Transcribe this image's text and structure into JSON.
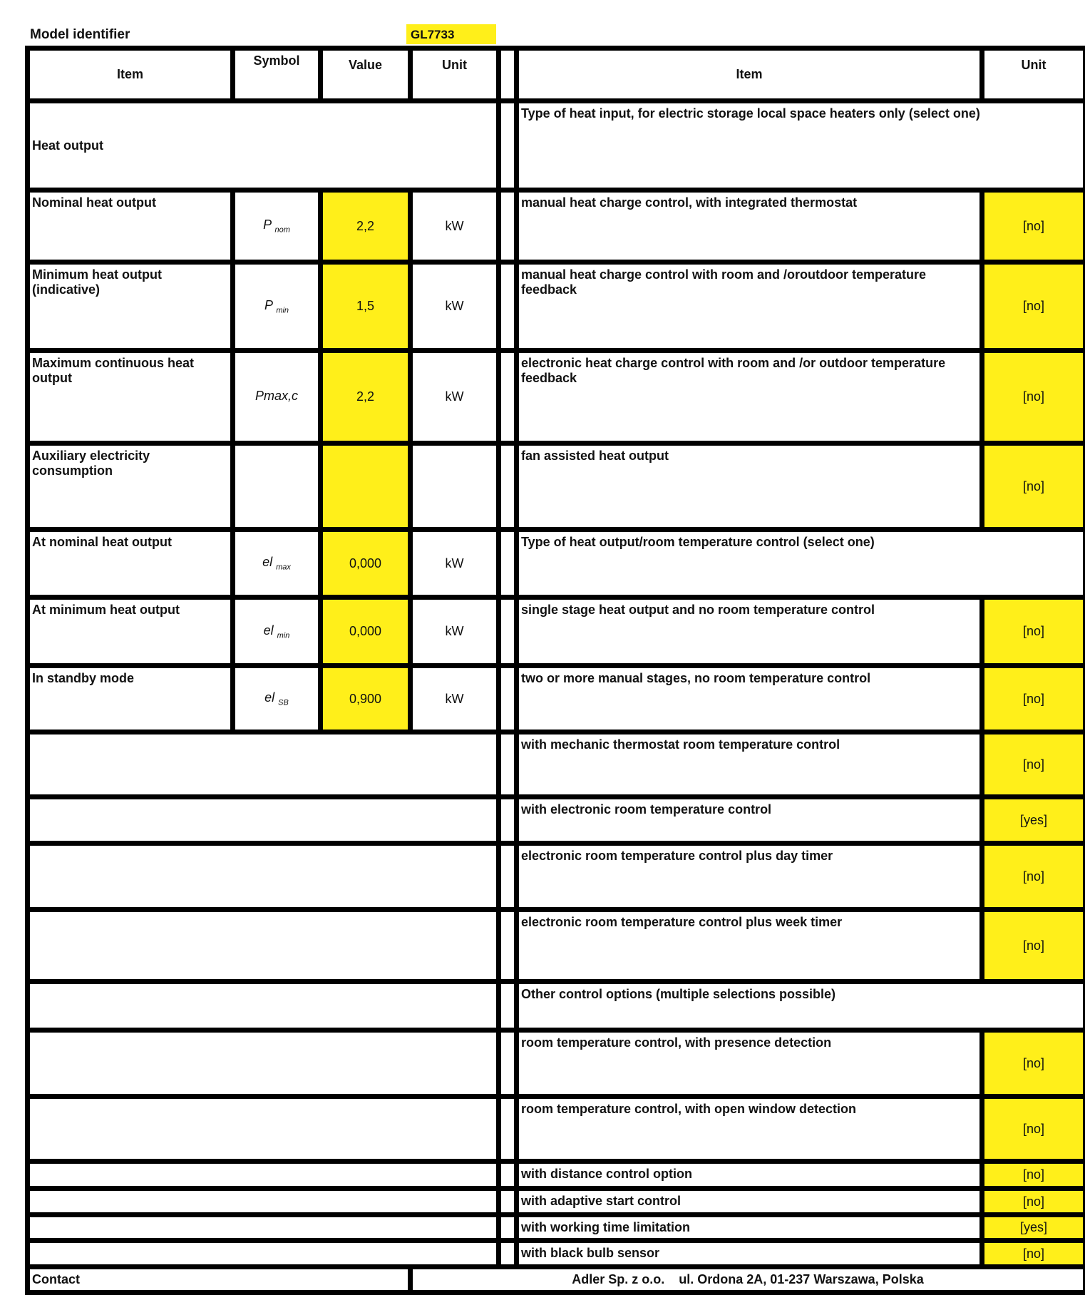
{
  "model": {
    "label": "Model identifier",
    "value": "GL7733"
  },
  "colors": {
    "highlight": "#ffef1a",
    "border": "#000000"
  },
  "header": {
    "item": "Item",
    "symbol": "Symbol",
    "value": "Value",
    "unit": "Unit",
    "right_item": "Item",
    "right_unit": "Unit"
  },
  "rows": [
    {
      "left": {
        "span": "Heat output"
      },
      "right": {
        "span": "Type of heat input, for electric storage local space heaters only (select one)"
      }
    },
    {
      "left": {
        "item": "Nominal heat output",
        "symbol": "P",
        "sub": "nom",
        "value": "2,2",
        "unit": "kW"
      },
      "right": {
        "item": "manual heat charge control, with integrated thermostat",
        "unit": "[no]"
      }
    },
    {
      "left": {
        "item": "Minimum heat output (indicative)",
        "symbol": "P",
        "sub": "min",
        "value": "1,5",
        "unit": "kW"
      },
      "right": {
        "item": "manual heat charge control with room and /oroutdoor temperature feedback",
        "unit": "[no]"
      }
    },
    {
      "left": {
        "item": "Maximum continuous heat output",
        "symbol": "Pmax,c",
        "sub": "",
        "value": "2,2",
        "unit": "kW"
      },
      "right": {
        "item": "electronic heat charge control with room and /or outdoor temperature feedback",
        "unit": "[no]"
      }
    },
    {
      "left": {
        "item": "Auxiliary electricity consumption",
        "symbol": "",
        "sub": "",
        "value": "",
        "unit": ""
      },
      "right": {
        "item": "fan assisted heat output",
        "unit": "[no]"
      }
    },
    {
      "left": {
        "item": "At nominal heat output",
        "symbol": "el",
        "sub": "max",
        "value": "0,000",
        "unit": "kW"
      },
      "right": {
        "span": "Type of heat output/room temperature control (select one)"
      }
    },
    {
      "left": {
        "item": "At minimum heat output",
        "symbol": "el",
        "sub": "min",
        "value": "0,000",
        "unit": "kW"
      },
      "right": {
        "item": "single stage heat output and no room temperature control",
        "unit": "[no]"
      }
    },
    {
      "left": {
        "item": "In standby mode",
        "symbol": "el",
        "sub": "SB",
        "value": "0,900",
        "unit": "kW"
      },
      "right": {
        "item": "two or more manual stages, no room temperature control",
        "unit": "[no]"
      }
    },
    {
      "left": {
        "span": ""
      },
      "right": {
        "item": "with mechanic thermostat room temperature control",
        "unit": "[no]"
      }
    },
    {
      "left": {
        "span": ""
      },
      "right": {
        "item": "with electronic room temperature control",
        "unit": "[yes]"
      }
    },
    {
      "left": {
        "span": ""
      },
      "right": {
        "item": "electronic room temperature control plus day timer",
        "unit": "[no]"
      }
    },
    {
      "left": {
        "span": ""
      },
      "right": {
        "item": "electronic room temperature control plus week timer",
        "unit": "[no]"
      }
    },
    {
      "left": {
        "span": ""
      },
      "right": {
        "span": "Other control options (multiple selections possible)"
      }
    },
    {
      "left": {
        "span": ""
      },
      "right": {
        "item": "room temperature control, with presence detection",
        "unit": "[no]"
      }
    },
    {
      "left": {
        "span": ""
      },
      "right": {
        "item": "room temperature control, with open window detection",
        "unit": "[no]"
      }
    },
    {
      "left": {
        "span": ""
      },
      "right": {
        "item": "with distance control option",
        "unit": "[no]"
      }
    },
    {
      "left": {
        "span": ""
      },
      "right": {
        "item": "with adaptive start control",
        "unit": "[no]"
      }
    },
    {
      "left": {
        "span": ""
      },
      "right": {
        "item": "with working time limitation",
        "unit": "[yes]"
      }
    },
    {
      "left": {
        "span": ""
      },
      "right": {
        "item": "with black bulb sensor",
        "unit": "[no]"
      }
    }
  ],
  "contact": {
    "label": "Contact",
    "value": "Adler Sp. z o.o.    ul. Ordona 2A, 01-237 Warszawa, Polska"
  }
}
